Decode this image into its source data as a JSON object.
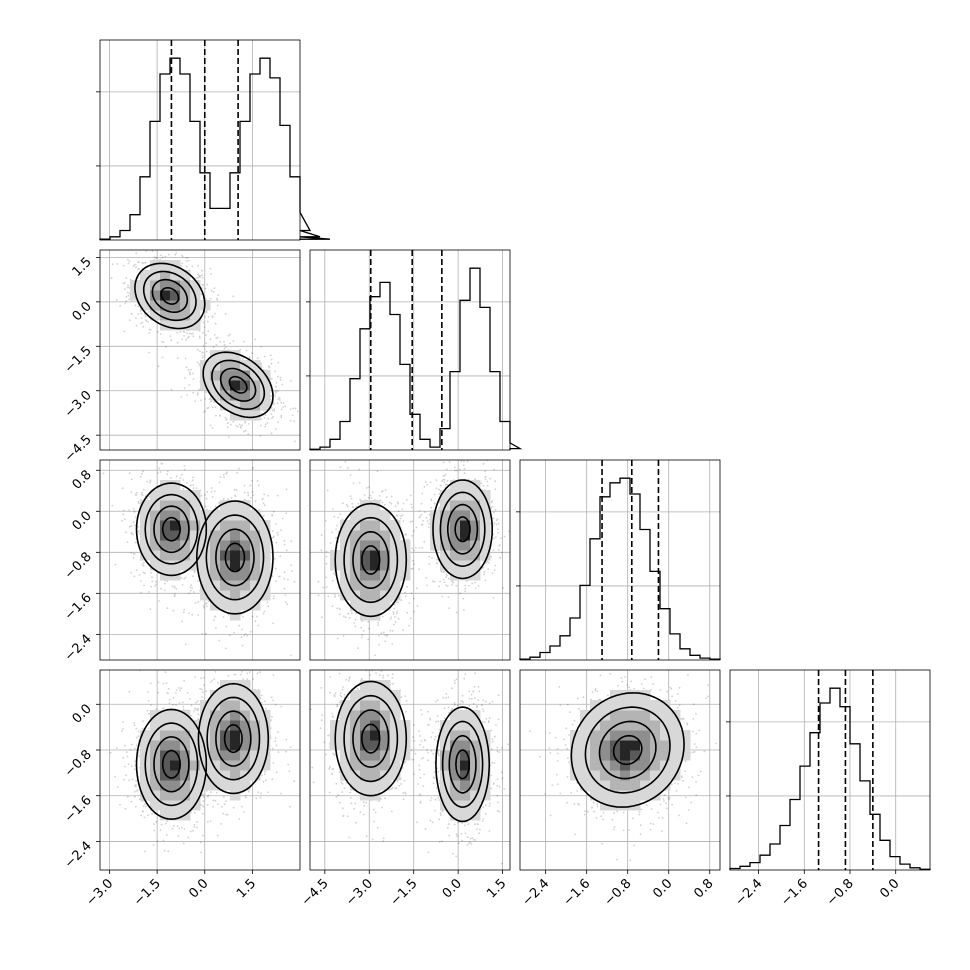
{
  "chart_data": {
    "type": "corner",
    "title": "",
    "grid": true,
    "params": [
      {
        "range": [
          -3.3,
          3.0
        ],
        "ticks": [
          "−3.0",
          "−1.5",
          "0.0",
          "1.5"
        ],
        "tick_values": [
          -3.0,
          -1.5,
          0.0,
          1.5
        ]
      },
      {
        "range": [
          -5.0,
          1.75
        ],
        "ticks": [
          "−4.5",
          "−3.0",
          "−1.5",
          "0.0",
          "1.5"
        ],
        "tick_values": [
          -4.5,
          -3.0,
          -1.5,
          0.0,
          1.5
        ]
      },
      {
        "range": [
          -2.9,
          1.0
        ],
        "ticks": [
          "−2.4",
          "−1.6",
          "−0.8",
          "0.0",
          "0.8"
        ],
        "tick_values": [
          -2.4,
          -1.6,
          -0.8,
          0.0,
          0.8
        ]
      },
      {
        "range": [
          -2.9,
          0.6
        ],
        "ticks": [
          "−2.4",
          "−1.6",
          "−0.8",
          "0.0"
        ],
        "tick_values": [
          -2.4,
          -1.6,
          -0.8,
          0.0
        ]
      }
    ],
    "diag_label_ticks": [
      null,
      [
        "−4.5",
        "−3.0",
        "−1.5",
        "0.0",
        "1.5"
      ],
      [
        "−2.4",
        "−1.6",
        "−0.8",
        "0.0",
        "0.8"
      ],
      [
        "−2.4",
        "−1.6",
        "−0.8",
        "0.0"
      ]
    ],
    "bottom_ticks": [
      [
        "−3.0",
        "−1.5",
        "0.0",
        "1.5"
      ],
      [
        "−4.5",
        "−3.0",
        "−1.5",
        "0.0",
        "1.5"
      ],
      [
        "−2.4",
        "−1.6",
        "−0.8",
        "0.0",
        "0.8"
      ],
      [
        "−2.4",
        "−1.6",
        "−0.8",
        "0.0"
      ]
    ],
    "histograms": [
      {
        "edges_start": -3.3,
        "bin_width": 0.315,
        "counts": [
          1,
          4,
          12,
          32,
          80,
          150,
          210,
          230,
          210,
          150,
          85,
          40,
          40,
          85,
          150,
          210,
          230,
          205,
          145,
          80,
          35,
          12,
          4,
          1
        ],
        "quantiles": [
          -1.05,
          0.0,
          1.05
        ]
      },
      {
        "edges_start": -5.0,
        "bin_width": 0.3375,
        "counts": [
          1,
          4,
          15,
          40,
          100,
          170,
          215,
          235,
          190,
          120,
          50,
          15,
          4,
          30,
          110,
          210,
          255,
          200,
          110,
          40,
          10,
          2
        ],
        "quantiles": [
          -2.95,
          -1.55,
          -0.55
        ]
      },
      {
        "edges_start": -2.9,
        "bin_width": 0.195,
        "counts": [
          1,
          3,
          8,
          15,
          26,
          45,
          80,
          130,
          175,
          190,
          195,
          178,
          140,
          95,
          55,
          28,
          12,
          5,
          2,
          1
        ],
        "quantiles": [
          -1.3,
          -0.72,
          -0.2
        ]
      },
      {
        "edges_start": -2.9,
        "bin_width": 0.175,
        "counts": [
          2,
          5,
          10,
          20,
          35,
          60,
          95,
          140,
          185,
          225,
          245,
          220,
          170,
          120,
          75,
          40,
          18,
          8,
          3,
          1
        ],
        "quantiles": [
          -1.35,
          -0.88,
          -0.4
        ]
      }
    ],
    "pairs": [
      {
        "row": 1,
        "col": 0,
        "modes": [
          {
            "mx": -1.1,
            "my": 0.2,
            "sx": 0.55,
            "sy": 0.55,
            "rho": -0.25,
            "weight": 1.0
          },
          {
            "mx": 1.05,
            "my": -2.8,
            "sx": 0.55,
            "sy": 0.55,
            "rho": -0.35,
            "weight": 1.0
          }
        ]
      },
      {
        "row": 2,
        "col": 0,
        "modes": [
          {
            "mx": -1.05,
            "my": -0.35,
            "sx": 0.55,
            "sy": 0.45,
            "rho": 0.0,
            "weight": 1.0
          },
          {
            "mx": 0.95,
            "my": -0.9,
            "sx": 0.6,
            "sy": 0.55,
            "rho": 0.0,
            "weight": 1.0
          }
        ]
      },
      {
        "row": 2,
        "col": 1,
        "modes": [
          {
            "mx": -2.95,
            "my": -0.95,
            "sx": 0.6,
            "sy": 0.55,
            "rho": 0.0,
            "weight": 1.0
          },
          {
            "mx": 0.15,
            "my": -0.35,
            "sx": 0.5,
            "sy": 0.48,
            "rho": 0.0,
            "weight": 1.0
          }
        ]
      },
      {
        "row": 3,
        "col": 0,
        "modes": [
          {
            "mx": -1.05,
            "my": -1.05,
            "sx": 0.55,
            "sy": 0.48,
            "rho": 0.0,
            "weight": 1.0
          },
          {
            "mx": 0.9,
            "my": -0.6,
            "sx": 0.55,
            "sy": 0.48,
            "rho": 0.0,
            "weight": 1.0
          }
        ]
      },
      {
        "row": 3,
        "col": 1,
        "modes": [
          {
            "mx": -2.95,
            "my": -0.6,
            "sx": 0.6,
            "sy": 0.5,
            "rho": 0.0,
            "weight": 1.0
          },
          {
            "mx": 0.15,
            "my": -1.05,
            "sx": 0.45,
            "sy": 0.5,
            "rho": 0.0,
            "weight": 1.0
          }
        ]
      },
      {
        "row": 3,
        "col": 2,
        "modes": [
          {
            "mx": -0.8,
            "my": -0.8,
            "sx": 0.55,
            "sy": 0.5,
            "rho": 0.1,
            "weight": 1.0
          }
        ]
      }
    ],
    "contour_levels": [
      0.118,
      0.393,
      0.675,
      0.865
    ],
    "colors": {
      "line": "#000000",
      "grid": "#b0b0b0",
      "background": "#ffffff"
    }
  }
}
